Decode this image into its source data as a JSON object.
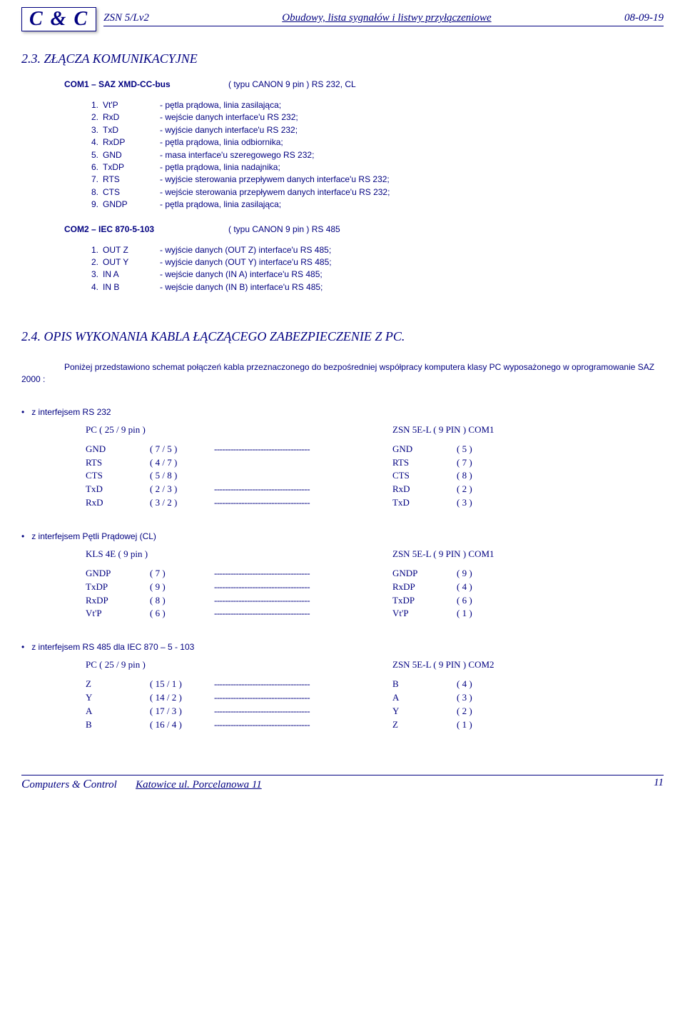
{
  "header": {
    "logo": "C & C",
    "code": "ZSN 5/Lv2",
    "title": "Obudowy, lista sygnałów i listwy przyłączeniowe",
    "date": "08-09-19"
  },
  "section23": {
    "title": "2.3. ZŁĄCZA KOMUNIKACYJNE",
    "com1": {
      "label": "COM1 – SAZ XMD-CC-bus",
      "type": "( typu CANON 9 pin ) RS 232, CL",
      "pins": [
        {
          "n": "1.",
          "name": "Vt'P",
          "desc": "- pętla prądowa, linia  zasilająca;"
        },
        {
          "n": "2.",
          "name": "RxD",
          "desc": "- wejście danych interface'u RS 232;"
        },
        {
          "n": "3.",
          "name": "TxD",
          "desc": "- wyjście danych interface'u RS 232;"
        },
        {
          "n": "4.",
          "name": "RxDP",
          "desc": "- pętla prądowa, linia  odbiornika;"
        },
        {
          "n": "5.",
          "name": "GND",
          "desc": "- masa interface'u szeregowego RS 232;"
        },
        {
          "n": "6.",
          "name": "TxDP",
          "desc": "- pętla prądowa, linia  nadajnika;"
        },
        {
          "n": "7.",
          "name": "RTS",
          "desc": "- wyjście sterowania przepływem danych interface'u RS 232;"
        },
        {
          "n": "8.",
          "name": "CTS",
          "desc": "- wejście sterowania przepływem danych interface'u RS 232;"
        },
        {
          "n": "9.",
          "name": "GNDP",
          "desc": "- pętla prądowa, linia  zasilająca;"
        }
      ]
    },
    "com2": {
      "label": "COM2 – IEC 870-5-103",
      "type": "( typu CANON 9 pin ) RS 485",
      "pins": [
        {
          "n": "1.",
          "name": "OUT Z",
          "desc": "- wyjście danych  (OUT Z)  interface'u RS 485;"
        },
        {
          "n": "2.",
          "name": "OUT Y",
          "desc": "- wyjście danych  (OUT Y)  interface'u RS 485;"
        },
        {
          "n": "3.",
          "name": "IN A",
          "desc": "- wejście danych  (IN A)  interface'u RS 485;"
        },
        {
          "n": "4.",
          "name": "IN B",
          "desc": "- wejście danych  (IN B)  interface'u RS 485;"
        }
      ]
    }
  },
  "section24": {
    "title": "2.4. OPIS WYKONANIA  KABLA  ŁĄCZĄCEGO  ZABEZPIECZENIE   Z   PC.",
    "intro": "Poniżej przedstawiono schemat połączeń kabla przeznaczonego do   bezpośredniej współpracy   komputera    klasy PC  wyposażonego w oprogramowanie  SAZ  2000  :",
    "groups": [
      {
        "bullet": "z  interfejsem  RS 232",
        "left_header": "PC    ( 25 / 9 pin )",
        "right_header": "ZSN 5E-L  ( 9 PIN ) COM1",
        "rows": [
          {
            "a": "GND",
            "b": "( 7 / 5 )",
            "dash": "-----------------------------------",
            "c": "GND",
            "d": "( 5 )"
          },
          {
            "a": "RTS",
            "b": "( 4 / 7 )",
            "dash": "",
            "c": "RTS",
            "d": "( 7 )"
          },
          {
            "a": "CTS",
            "b": "( 5 / 8 )",
            "dash": "",
            "c": "CTS",
            "d": "( 8 )"
          },
          {
            "a": "TxD",
            "b": "( 2 / 3 )",
            "dash": "-----------------------------------",
            "c": "RxD",
            "d": "( 2 )"
          },
          {
            "a": "RxD",
            "b": "( 3 / 2 )",
            "dash": "-----------------------------------",
            "c": "TxD",
            "d": "( 3 )"
          }
        ]
      },
      {
        "bullet": "z  interfejsem  Pętli Prądowej (CL)",
        "left_header": "KLS 4E   ( 9 pin )",
        "right_header": "ZSN 5E-L  ( 9 PIN ) COM1",
        "rows": [
          {
            "a": "GNDP",
            "b": "( 7 )",
            "dash": "-----------------------------------",
            "c": "GNDP",
            "d": "( 9 )"
          },
          {
            "a": "TxDP",
            "b": "( 9 )",
            "dash": "-----------------------------------",
            "c": "RxDP",
            "d": "( 4 )"
          },
          {
            "a": "RxDP",
            "b": "( 8 )",
            "dash": "-----------------------------------",
            "c": "TxDP",
            "d": "( 6 )"
          },
          {
            "a": "Vt'P",
            "b": "( 6 )",
            "dash": "-----------------------------------",
            "c": "Vt'P",
            "d": "( 1 )"
          }
        ]
      },
      {
        "bullet": "z  interfejsem  RS 485  dla  IEC 870 – 5 - 103",
        "left_header": "PC   ( 25 / 9 pin )",
        "right_header": "ZSN  5E-L  ( 9 PIN ) COM2",
        "rows": [
          {
            "a": "Z",
            "b": "( 15 / 1 )",
            "dash": "-----------------------------------",
            "c": "B",
            "d": "( 4 )"
          },
          {
            "a": "Y",
            "b": "( 14 / 2 )",
            "dash": "-----------------------------------",
            "c": "A",
            "d": "( 3 )"
          },
          {
            "a": "A",
            "b": "( 17 / 3 )",
            "dash": "-----------------------------------",
            "c": "Y",
            "d": "( 2 )"
          },
          {
            "a": "B",
            "b": "( 16 / 4 )",
            "dash": "-----------------------------------",
            "c": "Z",
            "d": "( 1 )"
          }
        ]
      }
    ]
  },
  "footer": {
    "brand_c": "C",
    "brand_rest_1": "omputers & ",
    "brand_rest_2": "ontrol",
    "address": "Katowice  ul. Porcelanowa 11",
    "page": "11"
  },
  "colors": {
    "text": "#000080",
    "bg": "#ffffff"
  }
}
